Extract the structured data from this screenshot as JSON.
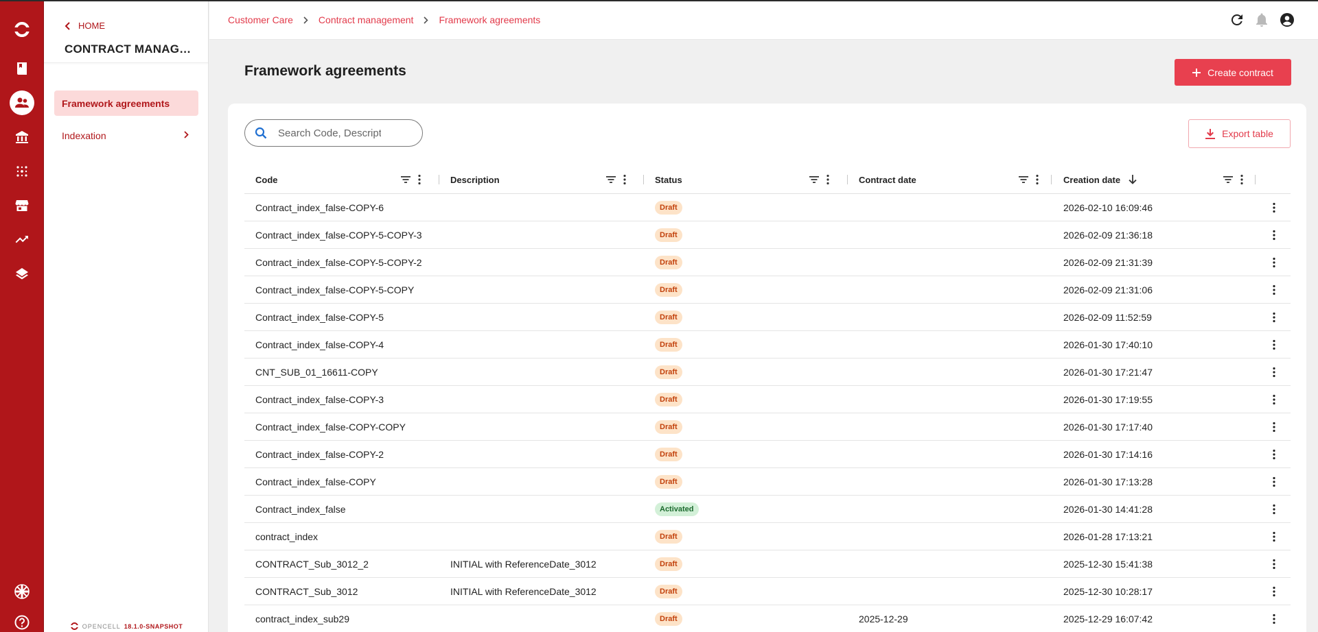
{
  "colors": {
    "brand": "#b0161a",
    "accent": "#e8404f",
    "link": "#e23a4a",
    "draft_bg": "#fde3c8",
    "activated_bg": "#d3f0d8"
  },
  "rail": {
    "icons": [
      "opencell-logo-icon",
      "book-icon",
      "customers-icon",
      "bank-icon",
      "dots-grid-icon",
      "store-icon",
      "trending-up-icon",
      "layers-icon",
      "language-flag-icon",
      "help-icon"
    ],
    "active": "customers-icon"
  },
  "sidebar": {
    "home_label": "HOME",
    "title": "CONTRACT MANAGEMENT",
    "items": [
      {
        "label": "Framework agreements",
        "active": true
      },
      {
        "label": "Indexation",
        "active": false,
        "has_submenu": true
      }
    ],
    "footer": {
      "brand": "OPENCELL",
      "version": "18.1.0-SNAPSHOT"
    }
  },
  "breadcrumb": [
    "Customer Care",
    "Contract management",
    "Framework agreements"
  ],
  "header_icons": [
    "refresh-icon",
    "notifications-icon",
    "account-icon"
  ],
  "main": {
    "title": "Framework agreements",
    "create_label": "Create contract",
    "export_label": "Export table",
    "search": {
      "placeholder": "Search Code, Description",
      "value": ""
    }
  },
  "table": {
    "columns": [
      "Code",
      "Description",
      "Status",
      "Contract date",
      "Creation date"
    ],
    "sort": {
      "column": "Creation date",
      "direction": "desc"
    },
    "rows": [
      {
        "code": "Contract_index_false-COPY-6",
        "description": "",
        "status": "Draft",
        "contract_date": "",
        "creation_date": "2026-02-10 16:09:46"
      },
      {
        "code": "Contract_index_false-COPY-5-COPY-3",
        "description": "",
        "status": "Draft",
        "contract_date": "",
        "creation_date": "2026-02-09 21:36:18"
      },
      {
        "code": "Contract_index_false-COPY-5-COPY-2",
        "description": "",
        "status": "Draft",
        "contract_date": "",
        "creation_date": "2026-02-09 21:31:39"
      },
      {
        "code": "Contract_index_false-COPY-5-COPY",
        "description": "",
        "status": "Draft",
        "contract_date": "",
        "creation_date": "2026-02-09 21:31:06"
      },
      {
        "code": "Contract_index_false-COPY-5",
        "description": "",
        "status": "Draft",
        "contract_date": "",
        "creation_date": "2026-02-09 11:52:59"
      },
      {
        "code": "Contract_index_false-COPY-4",
        "description": "",
        "status": "Draft",
        "contract_date": "",
        "creation_date": "2026-01-30 17:40:10"
      },
      {
        "code": "CNT_SUB_01_16611-COPY",
        "description": "",
        "status": "Draft",
        "contract_date": "",
        "creation_date": "2026-01-30 17:21:47"
      },
      {
        "code": "Contract_index_false-COPY-3",
        "description": "",
        "status": "Draft",
        "contract_date": "",
        "creation_date": "2026-01-30 17:19:55"
      },
      {
        "code": "Contract_index_false-COPY-COPY",
        "description": "",
        "status": "Draft",
        "contract_date": "",
        "creation_date": "2026-01-30 17:17:40"
      },
      {
        "code": "Contract_index_false-COPY-2",
        "description": "",
        "status": "Draft",
        "contract_date": "",
        "creation_date": "2026-01-30 17:14:16"
      },
      {
        "code": "Contract_index_false-COPY",
        "description": "",
        "status": "Draft",
        "contract_date": "",
        "creation_date": "2026-01-30 17:13:28"
      },
      {
        "code": "Contract_index_false",
        "description": "",
        "status": "Activated",
        "contract_date": "",
        "creation_date": "2026-01-30 14:41:28"
      },
      {
        "code": "contract_index",
        "description": "",
        "status": "Draft",
        "contract_date": "",
        "creation_date": "2026-01-28 17:13:21"
      },
      {
        "code": "CONTRACT_Sub_3012_2",
        "description": "INITIAL with ReferenceDate_3012",
        "status": "Draft",
        "contract_date": "",
        "creation_date": "2025-12-30 15:41:38"
      },
      {
        "code": "CONTRACT_Sub_3012",
        "description": "INITIAL with ReferenceDate_3012",
        "status": "Draft",
        "contract_date": "",
        "creation_date": "2025-12-30 10:28:17"
      },
      {
        "code": "contract_index_sub29",
        "description": "",
        "status": "Draft",
        "contract_date": "2025-12-29",
        "creation_date": "2025-12-29 16:07:42"
      }
    ]
  }
}
